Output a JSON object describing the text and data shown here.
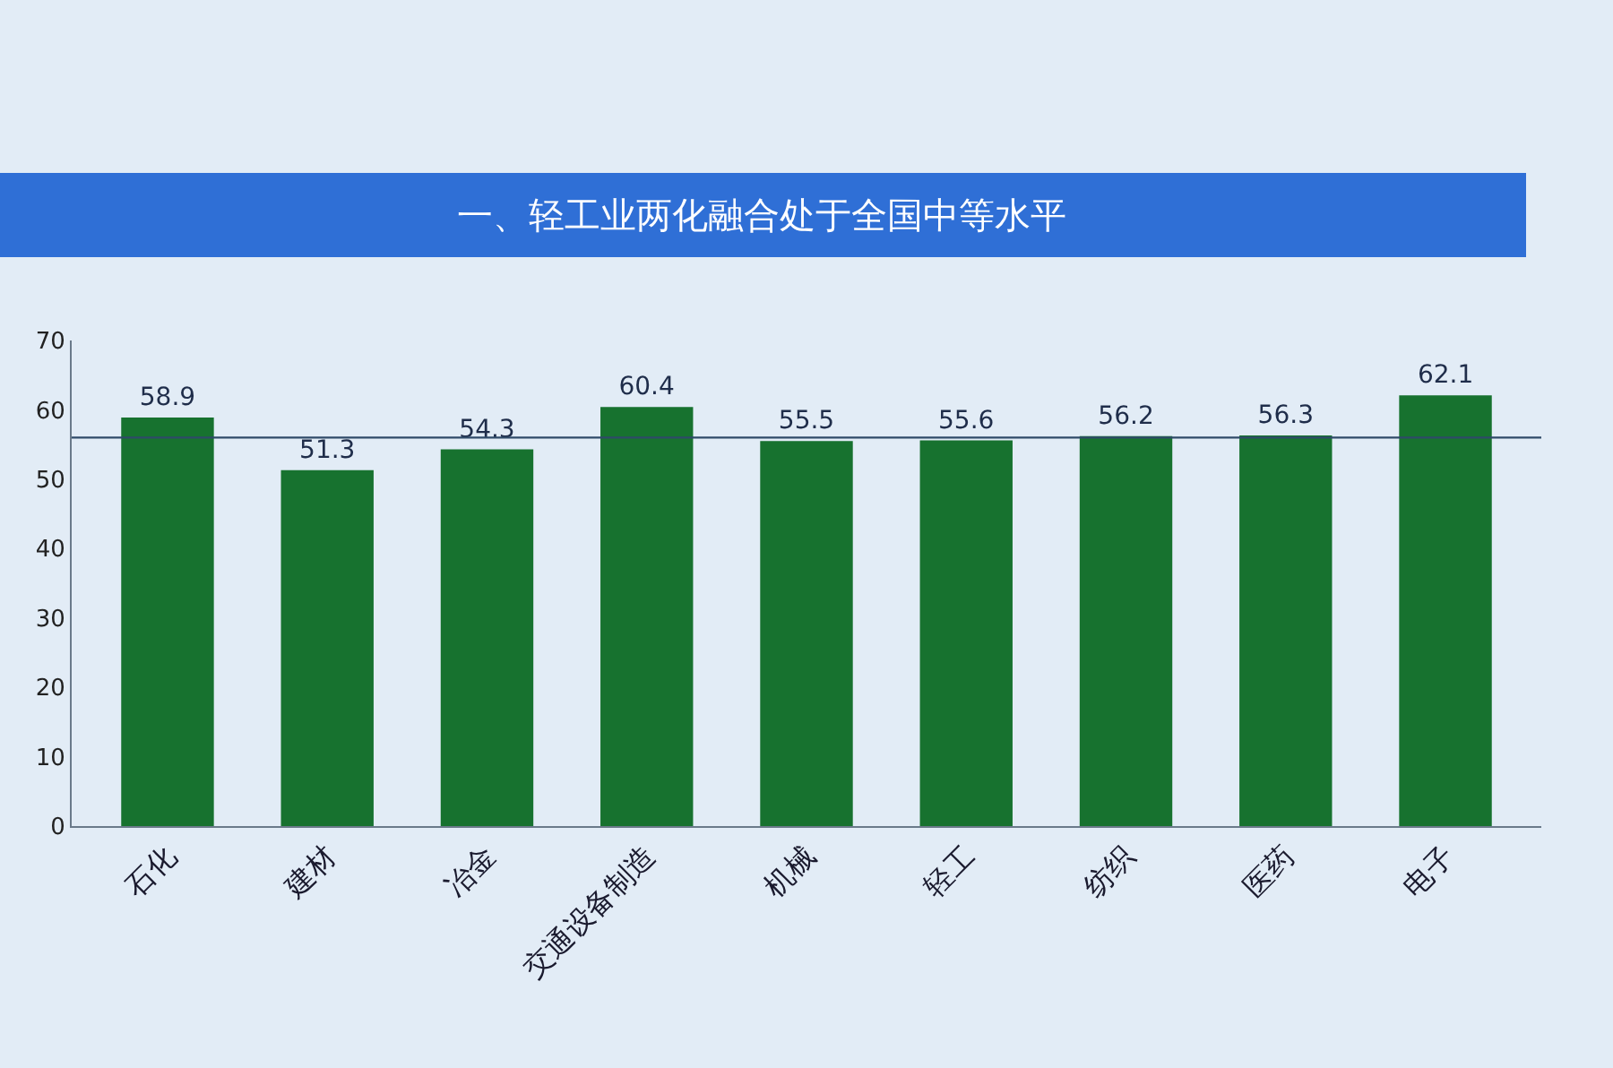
{
  "chart_data": {
    "type": "bar",
    "title": "一、轻工业两化融合处于全国中等水平",
    "categories": [
      "石化",
      "建材",
      "冶金",
      "交通设备制造",
      "机械",
      "轻工",
      "纺织",
      "医药",
      "电子"
    ],
    "values": [
      58.9,
      51.3,
      54.3,
      60.4,
      55.5,
      55.6,
      56.2,
      56.3,
      62.1
    ],
    "color": "#17722f",
    "data_labels": true,
    "ylim": [
      0,
      70
    ],
    "yticks": [
      0,
      10,
      20,
      30,
      40,
      50,
      60,
      70
    ],
    "grid": false,
    "ref_lines": [
      {
        "axis": "y",
        "value": 56,
        "color": "#2f4a68"
      }
    ]
  }
}
